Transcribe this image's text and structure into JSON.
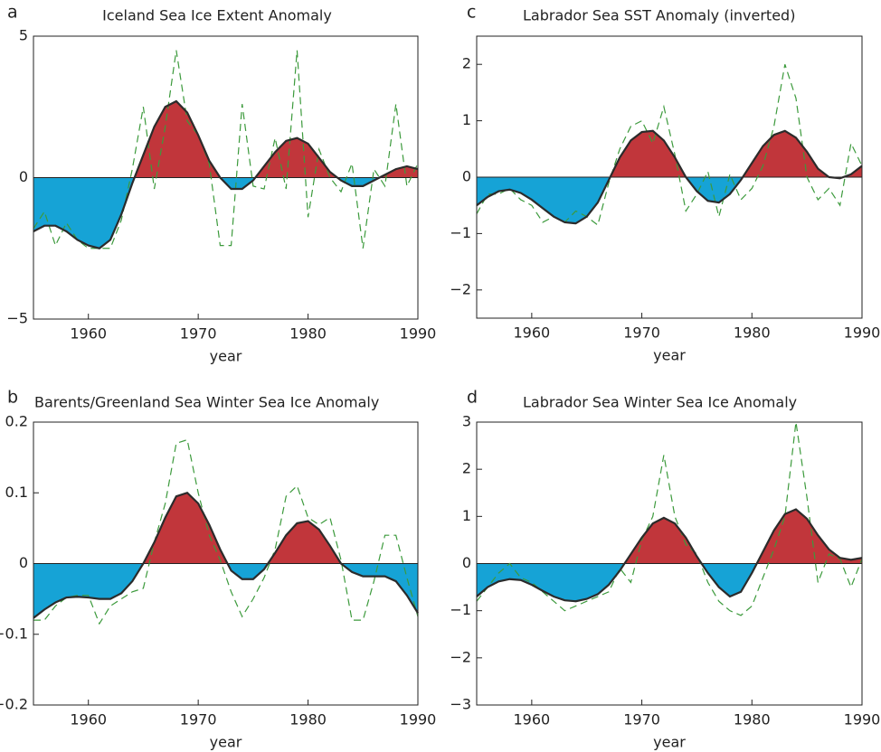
{
  "chart_data": [
    {
      "type": "anomaly",
      "panel": "a",
      "title": "Iceland Sea Ice Extent Anomaly",
      "xlabel": "year",
      "x": [
        1955,
        1956,
        1957,
        1958,
        1959,
        1960,
        1961,
        1962,
        1963,
        1964,
        1965,
        1966,
        1967,
        1968,
        1969,
        1970,
        1971,
        1972,
        1973,
        1974,
        1975,
        1976,
        1977,
        1978,
        1979,
        1980,
        1981,
        1982,
        1983,
        1984,
        1985,
        1986,
        1987,
        1988,
        1989,
        1990
      ],
      "xlim": [
        1955,
        1990
      ],
      "xticks": [
        1960,
        1970,
        1980,
        1990
      ],
      "ylim": [
        -5,
        5
      ],
      "yticks": [
        {
          "value": -5,
          "label": "−5"
        },
        0,
        5
      ],
      "positive_fill": "#c1363b",
      "negative_fill": "#16a3d6",
      "series": [
        {
          "color": "#2b2b2b",
          "values": [
            -1.9,
            -1.7,
            -1.7,
            -1.9,
            -2.2,
            -2.4,
            -2.5,
            -2.2,
            -1.3,
            -0.2,
            0.8,
            1.8,
            2.5,
            2.7,
            2.3,
            1.5,
            0.6,
            0,
            -0.4,
            -0.4,
            -0.1,
            0.4,
            0.9,
            1.3,
            1.4,
            1.2,
            0.7,
            0.2,
            -0.1,
            -0.3,
            -0.3,
            -0.1,
            0.1,
            0.3,
            0.4,
            0.3
          ]
        },
        {
          "color": "#3c9a3c",
          "dashed": true,
          "values": [
            -1.8,
            -1.2,
            -2.4,
            -1.6,
            -2.2,
            -2.5,
            -2.5,
            -2.5,
            -1.5,
            0.3,
            2.5,
            -0.4,
            1.8,
            4.5,
            2.0,
            1.5,
            0.5,
            -2.4,
            -2.4,
            2.6,
            -0.3,
            -0.4,
            1.4,
            -0.4,
            4.5,
            -1.4,
            1.0,
            0,
            -0.5,
            0.5,
            -2.5,
            0.3,
            -0.3,
            2.6,
            -0.3,
            0.5
          ]
        }
      ]
    },
    {
      "type": "anomaly",
      "panel": "b",
      "title": "Barents/Greenland Sea Winter Sea Ice Anomaly",
      "xlabel": "year",
      "x": [
        1955,
        1956,
        1957,
        1958,
        1959,
        1960,
        1961,
        1962,
        1963,
        1964,
        1965,
        1966,
        1967,
        1968,
        1969,
        1970,
        1971,
        1972,
        1973,
        1974,
        1975,
        1976,
        1977,
        1978,
        1979,
        1980,
        1981,
        1982,
        1983,
        1984,
        1985,
        1986,
        1987,
        1988,
        1989,
        1990
      ],
      "xlim": [
        1955,
        1990
      ],
      "xticks": [
        1960,
        1970,
        1980,
        1990
      ],
      "ylim": [
        -0.2,
        0.2
      ],
      "yticks": [
        {
          "value": -0.2,
          "label": "−0.2"
        },
        {
          "value": -0.1,
          "label": "−0.1"
        },
        0,
        0.1,
        0.2
      ],
      "positive_fill": "#c1363b",
      "negative_fill": "#16a3d6",
      "series": [
        {
          "color": "#2b2b2b",
          "values": [
            -0.077,
            -0.065,
            -0.055,
            -0.048,
            -0.047,
            -0.048,
            -0.05,
            -0.05,
            -0.042,
            -0.025,
            0.0,
            0.03,
            0.065,
            0.095,
            0.1,
            0.085,
            0.055,
            0.02,
            -0.01,
            -0.022,
            -0.022,
            -0.008,
            0.015,
            0.04,
            0.057,
            0.06,
            0.048,
            0.025,
            0.0,
            -0.012,
            -0.018,
            -0.018,
            -0.018,
            -0.025,
            -0.045,
            -0.07
          ]
        },
        {
          "color": "#3c9a3c",
          "dashed": true,
          "values": [
            -0.08,
            -0.08,
            -0.06,
            -0.048,
            -0.045,
            -0.045,
            -0.085,
            -0.06,
            -0.05,
            -0.04,
            -0.035,
            0.03,
            0.085,
            0.17,
            0.175,
            0.1,
            0.04,
            0.005,
            -0.04,
            -0.075,
            -0.05,
            -0.02,
            0.02,
            0.095,
            0.11,
            0.065,
            0.055,
            0.065,
            0.005,
            -0.08,
            -0.08,
            -0.025,
            0.04,
            0.04,
            -0.02,
            -0.075
          ]
        }
      ]
    },
    {
      "type": "anomaly",
      "panel": "c",
      "title": "Labrador Sea SST Anomaly (inverted)",
      "xlabel": "year",
      "x": [
        1955,
        1956,
        1957,
        1958,
        1959,
        1960,
        1961,
        1962,
        1963,
        1964,
        1965,
        1966,
        1967,
        1968,
        1969,
        1970,
        1971,
        1972,
        1973,
        1974,
        1975,
        1976,
        1977,
        1978,
        1979,
        1980,
        1981,
        1982,
        1983,
        1984,
        1985,
        1986,
        1987,
        1988,
        1989,
        1990
      ],
      "xlim": [
        1955,
        1990
      ],
      "xticks": [
        1960,
        1970,
        1980,
        1990
      ],
      "ylim": [
        -2.5,
        2.5
      ],
      "yticks": [
        {
          "value": -2,
          "label": "−2"
        },
        {
          "value": -1,
          "label": "−1"
        },
        0,
        1,
        2
      ],
      "positive_fill": "#c1363b",
      "negative_fill": "#16a3d6",
      "series": [
        {
          "color": "#2b2b2b",
          "values": [
            -0.5,
            -0.35,
            -0.25,
            -0.22,
            -0.28,
            -0.4,
            -0.55,
            -0.7,
            -0.8,
            -0.82,
            -0.7,
            -0.45,
            -0.05,
            0.35,
            0.65,
            0.8,
            0.82,
            0.65,
            0.35,
            0.0,
            -0.25,
            -0.42,
            -0.45,
            -0.3,
            -0.05,
            0.25,
            0.55,
            0.75,
            0.82,
            0.7,
            0.45,
            0.15,
            0.0,
            -0.02,
            0.05,
            0.2
          ]
        },
        {
          "color": "#3c9a3c",
          "dashed": true,
          "values": [
            -0.65,
            -0.3,
            -0.3,
            -0.2,
            -0.4,
            -0.5,
            -0.8,
            -0.7,
            -0.8,
            -0.6,
            -0.7,
            -0.85,
            -0.1,
            0.5,
            0.9,
            1.0,
            0.6,
            1.25,
            0.4,
            -0.6,
            -0.3,
            0.1,
            -0.7,
            0.05,
            -0.4,
            -0.2,
            0.2,
            0.9,
            2.0,
            1.4,
            0.0,
            -0.4,
            -0.2,
            -0.5,
            0.6,
            0.2
          ]
        }
      ]
    },
    {
      "type": "anomaly",
      "panel": "d",
      "title": "Labrador Sea Winter Sea Ice Anomaly",
      "xlabel": "year",
      "x": [
        1955,
        1956,
        1957,
        1958,
        1959,
        1960,
        1961,
        1962,
        1963,
        1964,
        1965,
        1966,
        1967,
        1968,
        1969,
        1970,
        1971,
        1972,
        1973,
        1974,
        1975,
        1976,
        1977,
        1978,
        1979,
        1980,
        1981,
        1982,
        1983,
        1984,
        1985,
        1986,
        1987,
        1988,
        1989,
        1990
      ],
      "xlim": [
        1955,
        1990
      ],
      "xticks": [
        1960,
        1970,
        1980,
        1990
      ],
      "ylim": [
        -3,
        3
      ],
      "yticks": [
        {
          "value": -3,
          "label": "−3"
        },
        {
          "value": -2,
          "label": "−2"
        },
        {
          "value": -1,
          "label": "−1"
        },
        0,
        1,
        2,
        3
      ],
      "positive_fill": "#c1363b",
      "negative_fill": "#16a3d6",
      "series": [
        {
          "color": "#2b2b2b",
          "values": [
            -0.7,
            -0.5,
            -0.38,
            -0.33,
            -0.35,
            -0.45,
            -0.58,
            -0.7,
            -0.78,
            -0.8,
            -0.75,
            -0.65,
            -0.45,
            -0.15,
            0.2,
            0.55,
            0.85,
            0.97,
            0.85,
            0.55,
            0.15,
            -0.2,
            -0.5,
            -0.7,
            -0.6,
            -0.2,
            0.25,
            0.7,
            1.05,
            1.15,
            0.95,
            0.6,
            0.3,
            0.12,
            0.08,
            0.12
          ]
        },
        {
          "color": "#3c9a3c",
          "dashed": true,
          "values": [
            -0.8,
            -0.5,
            -0.2,
            0.0,
            -0.3,
            -0.4,
            -0.6,
            -0.8,
            -1.0,
            -0.9,
            -0.8,
            -0.7,
            -0.6,
            -0.1,
            -0.4,
            0.5,
            1.0,
            2.3,
            1.0,
            0.4,
            0.2,
            -0.4,
            -0.8,
            -1.0,
            -1.1,
            -0.9,
            -0.3,
            0.3,
            1.0,
            3.0,
            1.4,
            -0.4,
            0.2,
            0.1,
            -0.5,
            0.1
          ]
        }
      ]
    }
  ]
}
